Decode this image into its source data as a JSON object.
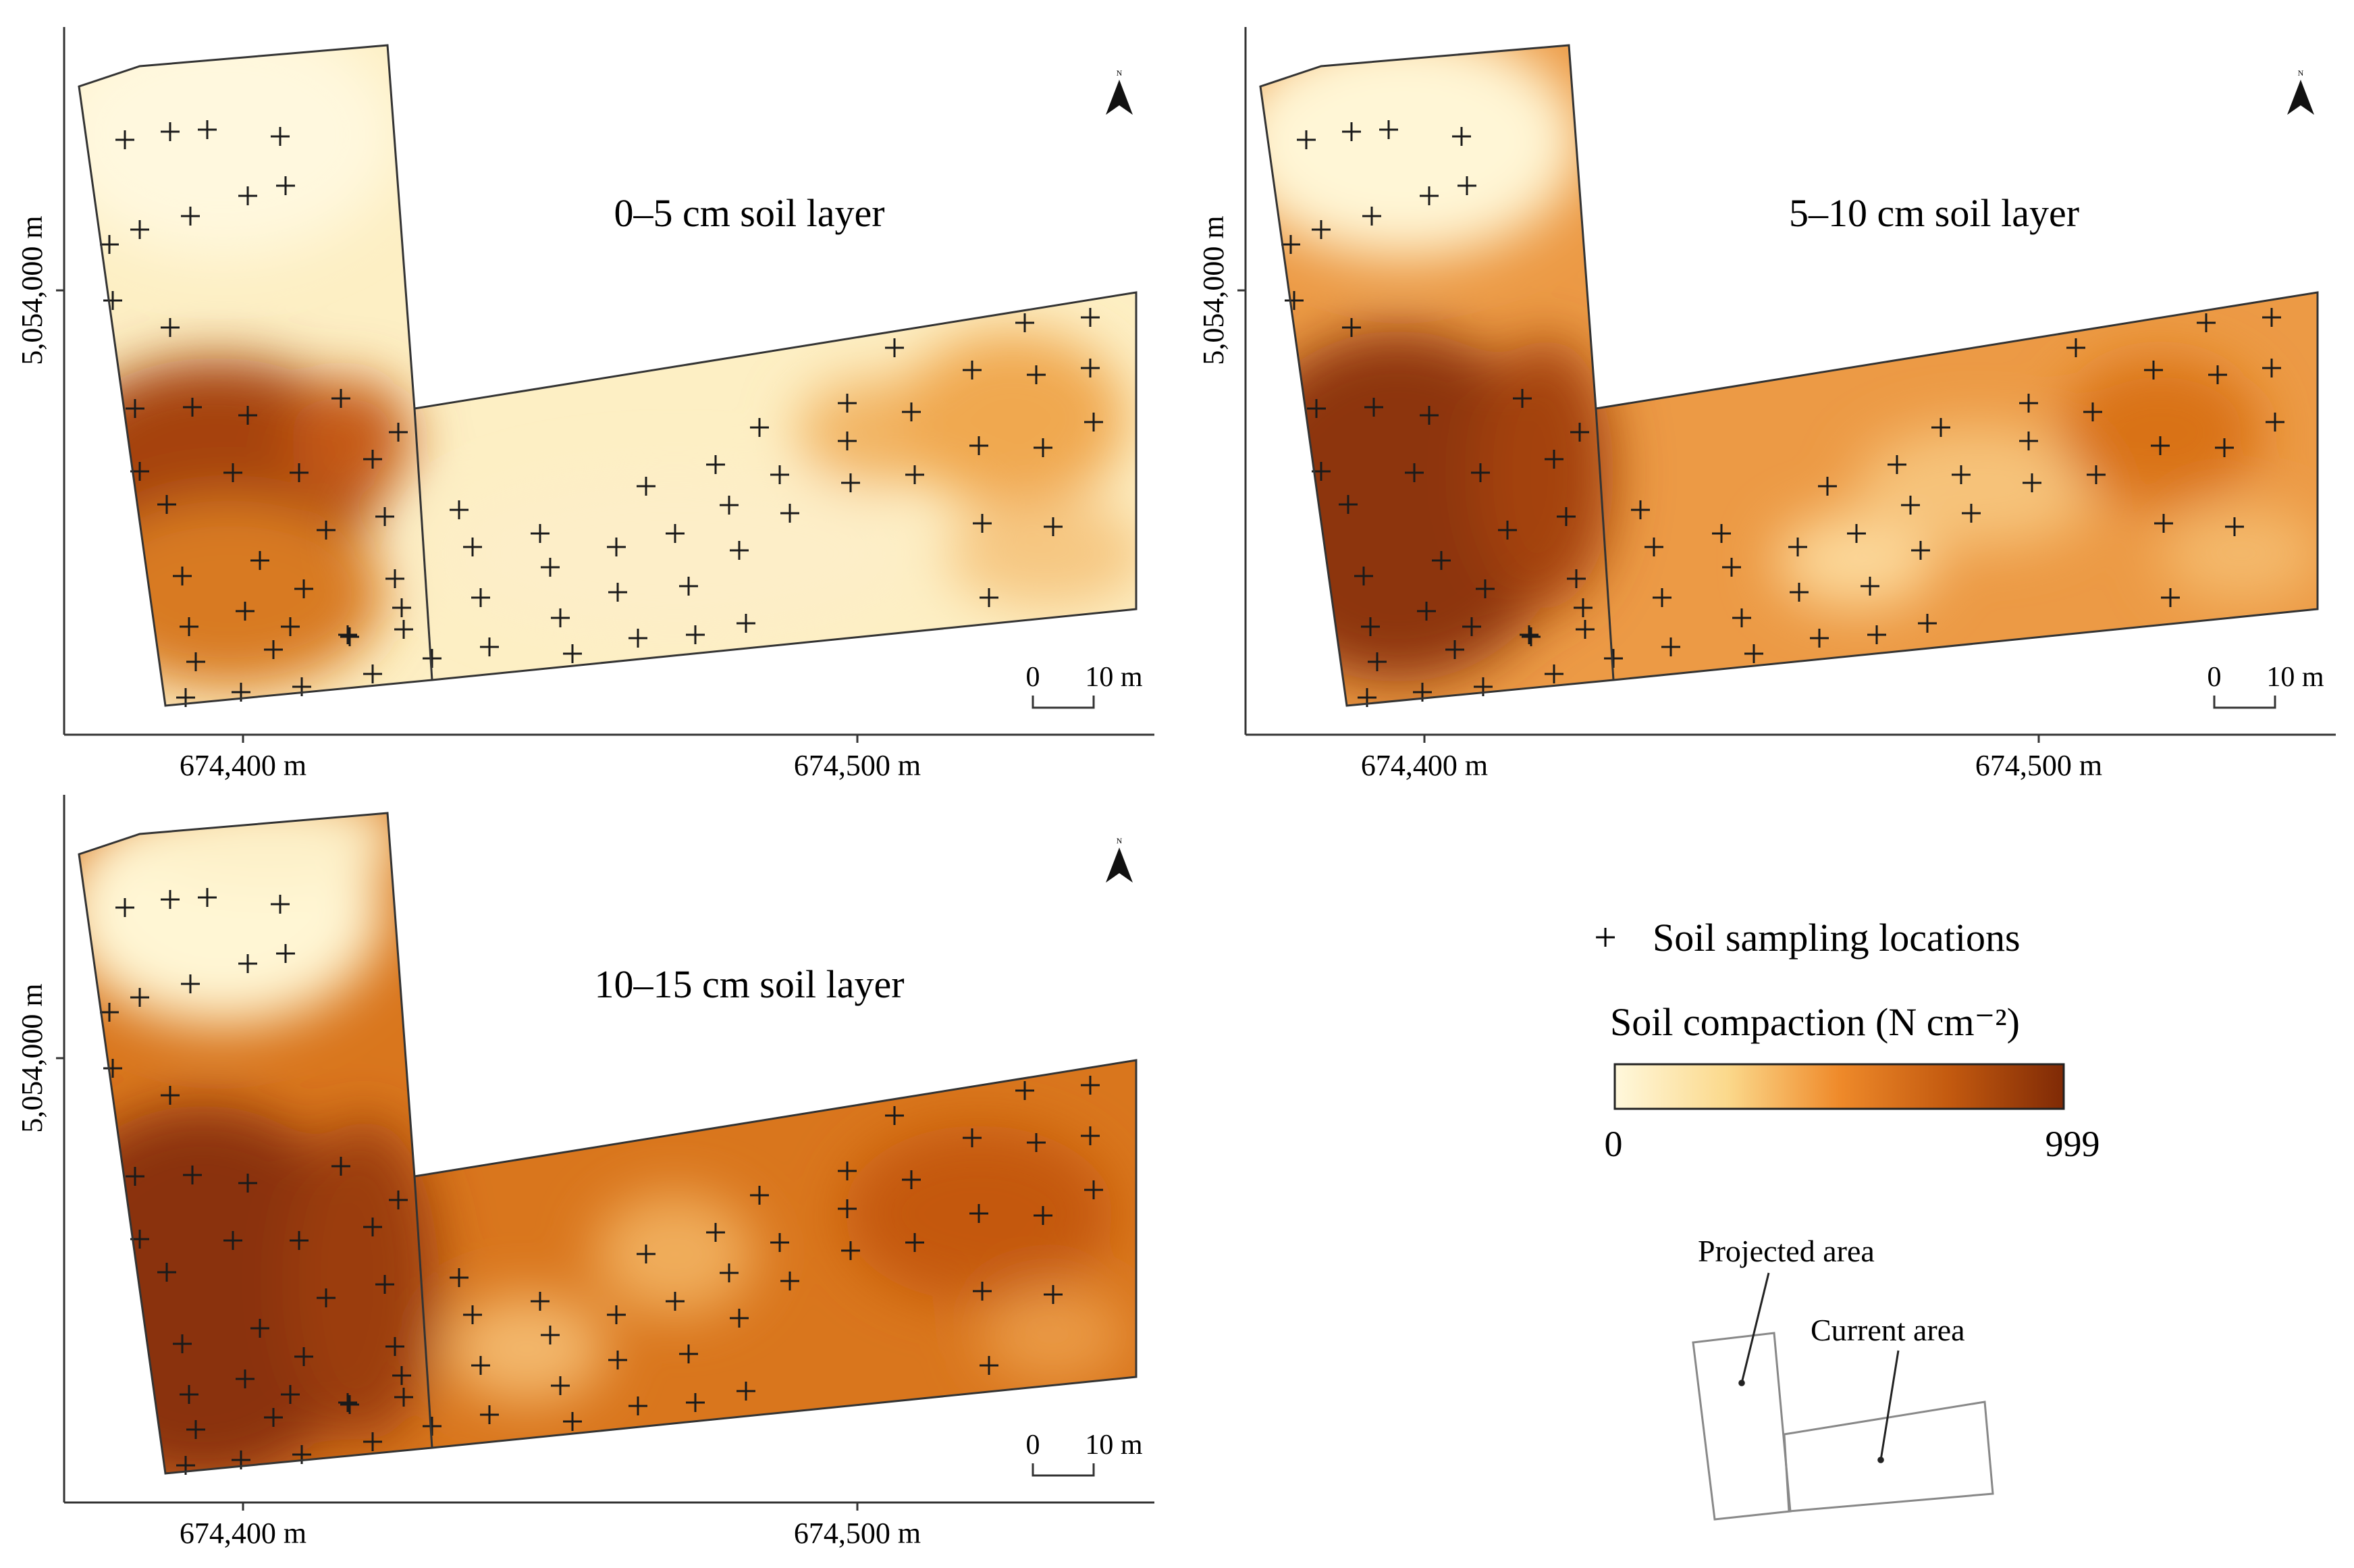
{
  "panels": [
    {
      "id": "layer-0-5",
      "title": "0–5 cm soil layer",
      "x_ticks": [
        "674,400 m",
        "674,500 m"
      ],
      "y_tick": "5,054,000 m",
      "scale_bar": {
        "start": "0",
        "end": "10 m"
      },
      "north_label": "N",
      "depth_index": 0
    },
    {
      "id": "layer-5-10",
      "title": "5–10 cm soil layer",
      "x_ticks": [
        "674,400 m",
        "674,500 m"
      ],
      "y_tick": "5,054,000 m",
      "scale_bar": {
        "start": "0",
        "end": "10 m"
      },
      "north_label": "N",
      "depth_index": 1
    },
    {
      "id": "layer-10-15",
      "title": "10–15 cm soil layer",
      "x_ticks": [
        "674,400 m",
        "674,500 m"
      ],
      "y_tick": "5,054,000 m",
      "scale_bar": {
        "start": "0",
        "end": "10 m"
      },
      "north_label": "N",
      "depth_index": 2
    }
  ],
  "legend": {
    "sampling_symbol": "+",
    "sampling_label": "Soil sampling locations",
    "compaction_title": "Soil compaction (N cm⁻²)",
    "min_label": "0",
    "max_label": "999",
    "colors": [
      "#fff8dc",
      "#fbd98c",
      "#ef8a2a",
      "#c2590f",
      "#7f2a06"
    ]
  },
  "inset": {
    "projected_label": "Projected area",
    "current_label": "Current area"
  },
  "colors": {
    "light": "#fef5d8",
    "mid": "#f0a24a",
    "dark": "#8a3207",
    "outline": "#333333"
  }
}
